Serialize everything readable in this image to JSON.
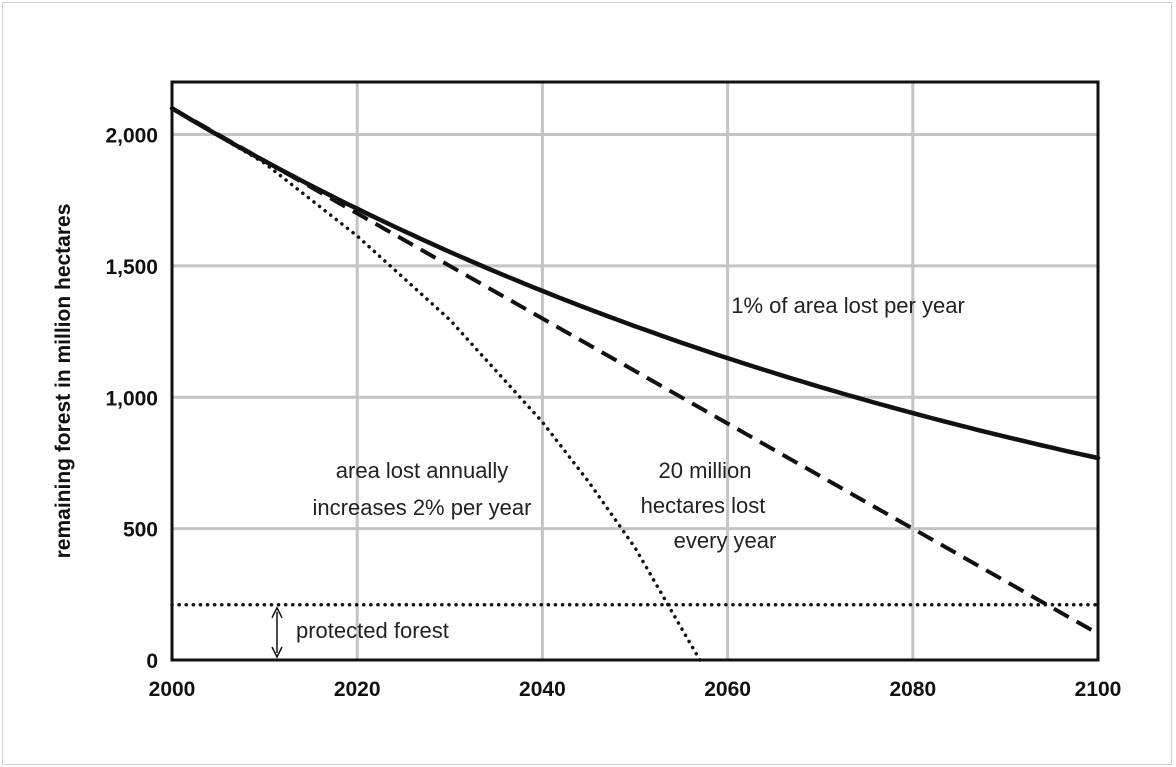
{
  "chart_data": {
    "type": "line",
    "title": "",
    "xlabel": "",
    "ylabel": "remaining forest in million hectares",
    "xlim": [
      2000,
      2100
    ],
    "ylim": [
      0,
      2100
    ],
    "xticks": [
      2000,
      2020,
      2040,
      2060,
      2080,
      2100
    ],
    "xtick_labels": [
      "2000",
      "2020",
      "2040",
      "2060",
      "2080",
      "2100"
    ],
    "yticks": [
      0,
      500,
      1000,
      1500,
      2000
    ],
    "ytick_labels": [
      "0",
      "500",
      "1,000",
      "1,500",
      "2,000"
    ],
    "grid": true,
    "series": [
      {
        "label": "1% of area lost per year",
        "style": "solid",
        "x": [
          2000,
          2010,
          2020,
          2030,
          2040,
          2050,
          2060,
          2070,
          2080,
          2090,
          2100
        ],
        "y": [
          2100,
          1899,
          1718,
          1553,
          1405,
          1271,
          1149,
          1039,
          940,
          850,
          769
        ]
      },
      {
        "label": "20 million hectares lost every year",
        "style": "dashed",
        "x": [
          2000,
          2020,
          2040,
          2060,
          2080,
          2100
        ],
        "y": [
          2100,
          1700,
          1300,
          900,
          500,
          100
        ]
      },
      {
        "label": "area lost annually increases 2% per year",
        "style": "dotted",
        "x": [
          2000,
          2010,
          2020,
          2030,
          2040,
          2045,
          2050,
          2057
        ],
        "y": [
          2100,
          1891,
          1614,
          1295,
          906,
          678,
          428,
          0
        ]
      },
      {
        "label": "protected forest",
        "style": "dotted",
        "x": [
          2000,
          2100
        ],
        "y": [
          210,
          210
        ]
      }
    ],
    "annotations": [
      {
        "text": [
          "1% of area lost per year"
        ]
      },
      {
        "text": [
          "area lost annually",
          "increases 2% per year"
        ]
      },
      {
        "text": [
          "20 million",
          "hectares lost",
          "every year"
        ]
      },
      {
        "text": [
          "protected forest"
        ]
      }
    ]
  }
}
